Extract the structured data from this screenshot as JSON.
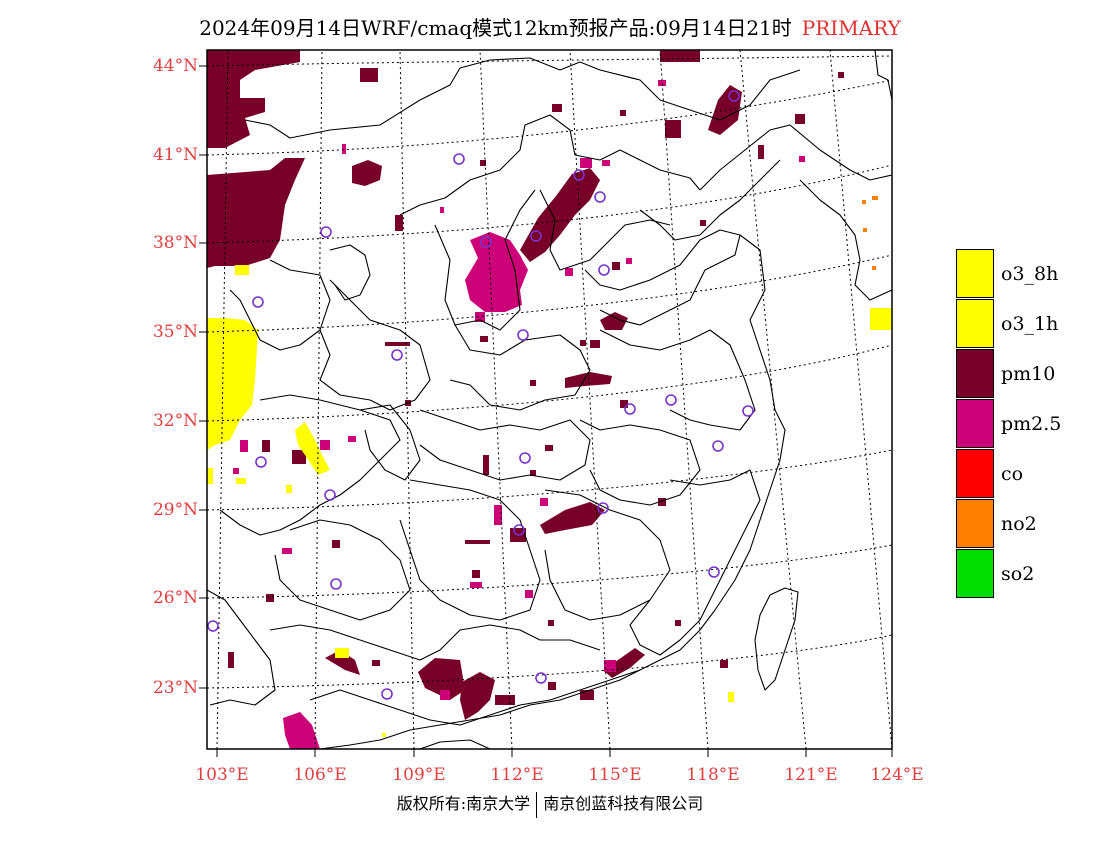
{
  "header": {
    "title": "2024年09月14日WRF/cmaq模式12km预报产品:09月14日21时",
    "tag": "PRIMARY"
  },
  "colors": {
    "o3_8h": "#ffff00",
    "o3_1h": "#ffff00",
    "pm10": "#780028",
    "pm25": "#cc0077",
    "co": "#ff0000",
    "no2": "#ff8000",
    "so2": "#00dd00",
    "label": "#e04040",
    "station": "#7733cc"
  },
  "axes": {
    "lat_labels": [
      "44°N",
      "41°N",
      "38°N",
      "35°N",
      "32°N",
      "29°N",
      "26°N",
      "23°N"
    ],
    "lon_labels": [
      "103°E",
      "106°E",
      "109°E",
      "112°E",
      "115°E",
      "118°E",
      "121°E",
      "124°E"
    ]
  },
  "legend": {
    "items": [
      {
        "label": "o3_8h",
        "color": "#ffff00"
      },
      {
        "label": "o3_1h",
        "color": "#ffff00"
      },
      {
        "label": "pm10",
        "color": "#780028"
      },
      {
        "label": "pm2.5",
        "color": "#cc0077"
      },
      {
        "label": "co",
        "color": "#ff0000"
      },
      {
        "label": "no2",
        "color": "#ff8000"
      },
      {
        "label": "so2",
        "color": "#00dd00"
      }
    ]
  },
  "footer": {
    "left": "版权所有:南京大学",
    "right": "南京创蓝科技有限公司"
  }
}
